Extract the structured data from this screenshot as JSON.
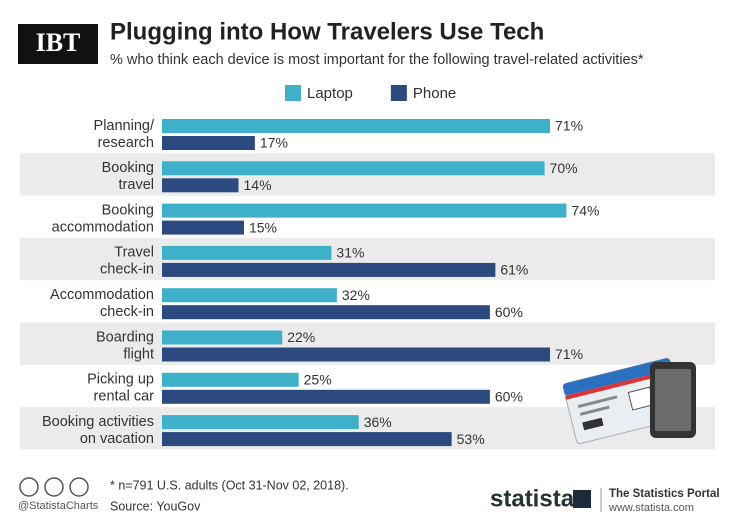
{
  "brand": "IBT",
  "chart_data": {
    "type": "bar",
    "orientation": "horizontal",
    "title": "Plugging into How Travelers Use Tech",
    "subtitle": "% who think each device is most important for the following travel-related activities*",
    "categories": [
      [
        "Planning/",
        "research"
      ],
      [
        "Booking",
        "travel"
      ],
      [
        "Booking",
        "accommodation"
      ],
      [
        "Travel",
        "check-in"
      ],
      [
        "Accommodation",
        "check-in"
      ],
      [
        "Boarding",
        "flight"
      ],
      [
        "Picking up",
        "rental car"
      ],
      [
        "Booking activities",
        "on vacation"
      ]
    ],
    "series": [
      {
        "name": "Laptop",
        "color": "#3fb0c9",
        "values": [
          71,
          70,
          74,
          31,
          32,
          22,
          25,
          36
        ],
        "value_labels": [
          "71%",
          "70%",
          "74%",
          "31%",
          "32%",
          "22%",
          "25%",
          "36%"
        ]
      },
      {
        "name": "Phone",
        "color": "#2b4b80",
        "values": [
          17,
          14,
          15,
          61,
          60,
          71,
          60,
          53
        ],
        "value_labels": [
          "17%",
          "14%",
          "15%",
          "61%",
          "60%",
          "71%",
          "60%",
          "53%"
        ]
      }
    ],
    "legend": "top",
    "footnote": "* n=791 U.S. adults (Oct 31-Nov 02, 2018).",
    "source": "Source: YouGov"
  },
  "footer": {
    "handle": "@StatistaCharts",
    "logo": "statista",
    "tagline": "The Statistics Portal",
    "url": "www.statista.com"
  }
}
